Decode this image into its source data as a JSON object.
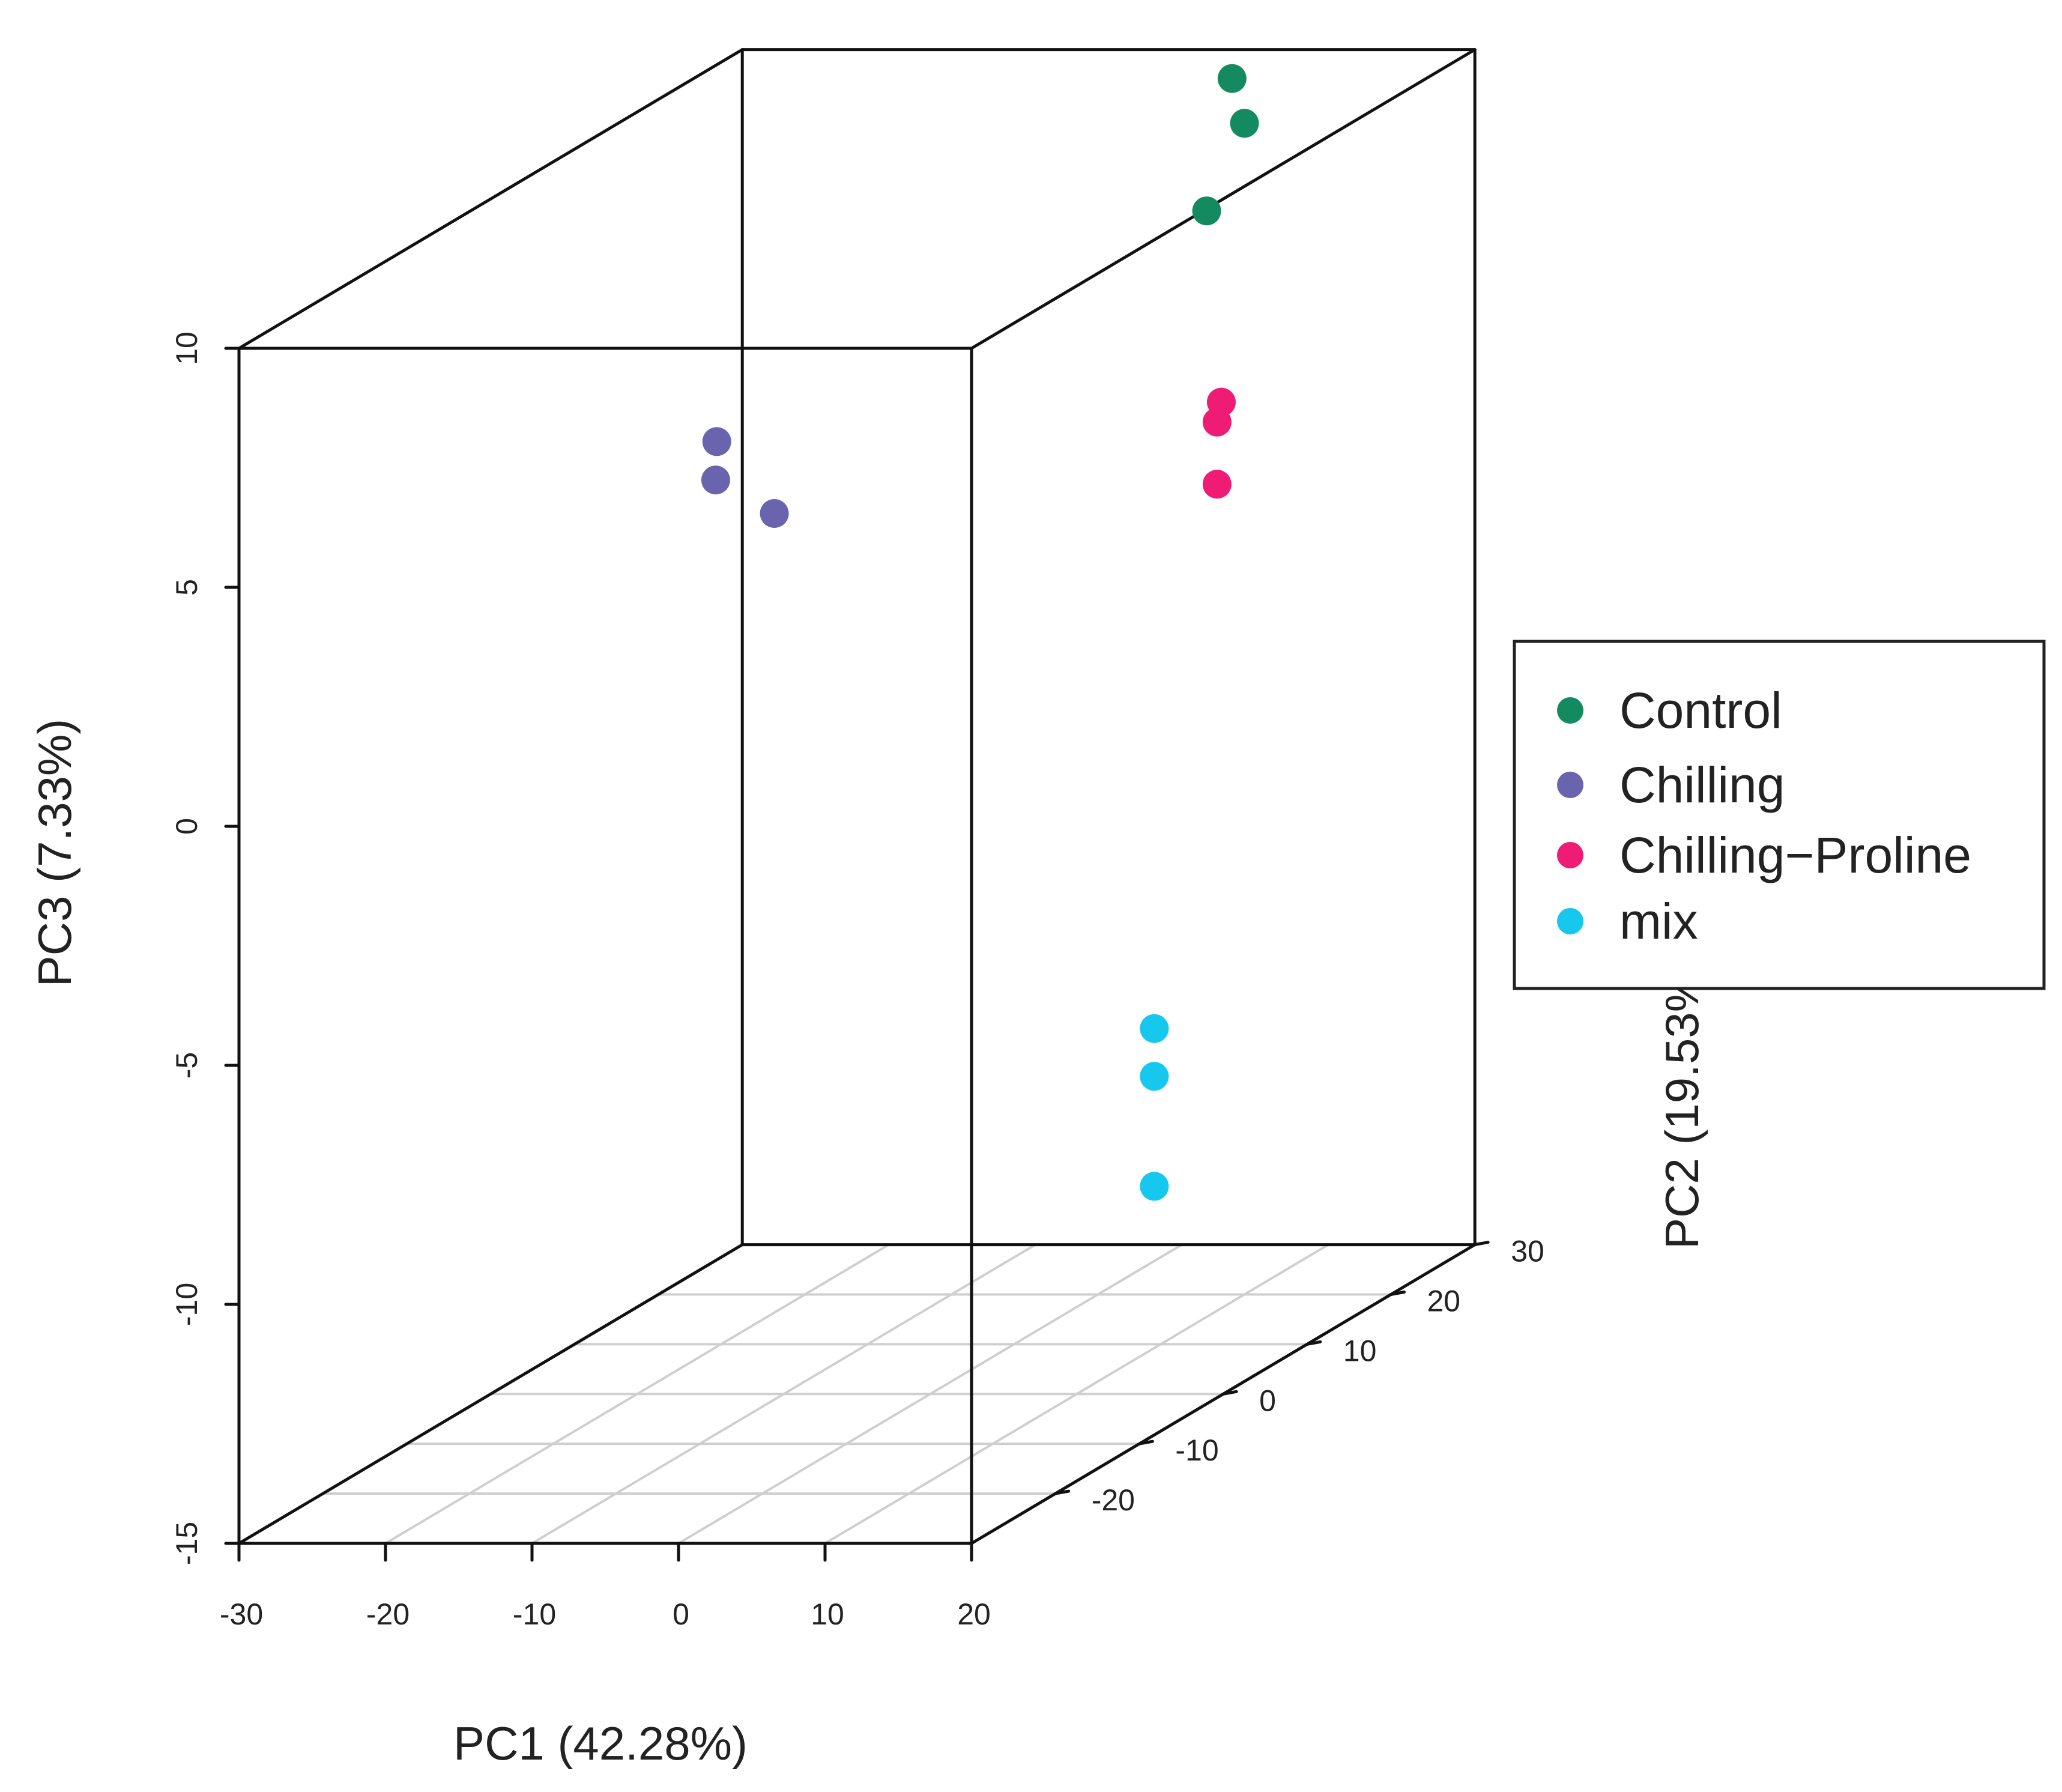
{
  "chart_data": {
    "type": "scatter",
    "projection": "3d",
    "title": "",
    "xlabel": "PC1 (42.28%)",
    "ylabel": "PC2 (19.53%)",
    "zlabel": "PC3 (7.33%)",
    "xlim": [
      -30,
      20
    ],
    "ylim": [
      -30,
      30
    ],
    "zlim": [
      -15,
      10
    ],
    "x_ticks": [
      "-30",
      "-20",
      "-10",
      "0",
      "10",
      "20"
    ],
    "y_ticks": [
      "-20",
      "-10",
      "0",
      "10",
      "20",
      "30"
    ],
    "z_ticks": [
      "-15",
      "-10",
      "-5",
      "0",
      "5",
      "10"
    ],
    "grid": "floor",
    "legend_position": "right",
    "series": [
      {
        "name": "Control",
        "color": "#138a5f",
        "points": [
          {
            "x": 4,
            "y": 29,
            "z": 9.5
          },
          {
            "x": 10,
            "y": 20,
            "z": 9.5
          },
          {
            "x": 12,
            "y": 12,
            "z": 8.5
          }
        ]
      },
      {
        "name": "Chilling",
        "color": "#6a64ae",
        "points": [
          {
            "x": -18,
            "y": 6,
            "z": 4.3
          },
          {
            "x": -17.5,
            "y": 5,
            "z": 3.6
          },
          {
            "x": -13.5,
            "y": 5,
            "z": 2.9
          }
        ]
      },
      {
        "name": "Chilling−Proline",
        "color": "#ee1c75",
        "points": [
          {
            "x": 13,
            "y": 12,
            "z": 4.5
          },
          {
            "x": 15,
            "y": 8,
            "z": 4.5
          },
          {
            "x": 15,
            "y": 8,
            "z": 3.2
          }
        ]
      },
      {
        "name": "mix",
        "color": "#16c8ed",
        "points": [
          {
            "x": 9,
            "y": 11,
            "z": -8.5
          },
          {
            "x": 9,
            "y": 11,
            "z": -9.5
          },
          {
            "x": 9,
            "y": 11,
            "z": -11.8
          }
        ]
      }
    ]
  }
}
